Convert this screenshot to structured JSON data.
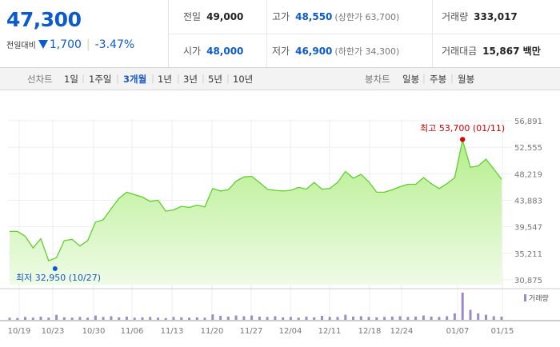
{
  "quote": {
    "price": "47,300",
    "change_label": "전일대비",
    "change": "1,700",
    "change_pct": "-3.47%"
  },
  "stats": {
    "prev_close": {
      "label": "전일",
      "value": "49,000"
    },
    "open": {
      "label": "시가",
      "value": "48,000"
    },
    "high": {
      "label": "고가",
      "value": "48,550",
      "sub": "(상한가 63,700)"
    },
    "low": {
      "label": "저가",
      "value": "46,900",
      "sub": "(하한가 34,300)"
    },
    "volume": {
      "label": "거래량",
      "value": "333,017"
    },
    "amount": {
      "label": "거래대금",
      "value": "15,867 백만"
    }
  },
  "line_tabs": {
    "group_label": "선차트",
    "items": [
      "1일",
      "1주일",
      "3개월",
      "1년",
      "3년",
      "5년",
      "10년"
    ],
    "selected": "3개월"
  },
  "candle_tabs": {
    "group_label": "봉차트",
    "items": [
      "일봉",
      "주봉",
      "월봉"
    ]
  },
  "colors": {
    "accent": "#0c5bcc",
    "rise": "#e00000",
    "line": "#5fcf2e",
    "volume": "#9b8cc8"
  },
  "chart_data": {
    "type": "area",
    "y_ticks": [
      "56,891",
      "52,555",
      "48,219",
      "43,883",
      "39,547",
      "35,211",
      "30,875"
    ],
    "ylim": [
      30875,
      56891
    ],
    "x_ticks": [
      "10/19",
      "10/23",
      "10/30",
      "11/06",
      "11/13",
      "11/20",
      "11/27",
      "12/04",
      "12/11",
      "12/18",
      "12/24",
      "01/07",
      "01/15"
    ],
    "high_label": "최고 53,700 (01/11)",
    "low_label": "최저 32,950 (10/27)",
    "volume_label": "거래량",
    "prices": [
      38800,
      38800,
      38000,
      36100,
      37600,
      34000,
      34500,
      37300,
      37500,
      36400,
      37300,
      40300,
      40700,
      42500,
      44200,
      45200,
      44800,
      44400,
      43700,
      43900,
      42100,
      42300,
      42900,
      42700,
      43100,
      42800,
      45800,
      45400,
      45600,
      47000,
      47700,
      47800,
      46800,
      45700,
      45500,
      45400,
      45500,
      46000,
      45700,
      46800,
      45700,
      45800,
      46800,
      48600,
      47500,
      48100,
      46900,
      45200,
      45200,
      45600,
      46100,
      46500,
      46500,
      47600,
      46600,
      45800,
      46600,
      47600,
      53700,
      49300,
      49500,
      50600,
      49000,
      47300
    ],
    "volumes": [
      30,
      25,
      40,
      30,
      45,
      30,
      70,
      35,
      30,
      40,
      30,
      60,
      40,
      50,
      35,
      45,
      30,
      35,
      40,
      30,
      25,
      40,
      35,
      30,
      35,
      30,
      75,
      55,
      45,
      60,
      50,
      60,
      45,
      40,
      50,
      35,
      40,
      30,
      45,
      35,
      55,
      40,
      40,
      70,
      45,
      50,
      40,
      35,
      40,
      45,
      50,
      40,
      45,
      60,
      45,
      40,
      50,
      90,
      380,
      140,
      90,
      70,
      50,
      45
    ]
  }
}
